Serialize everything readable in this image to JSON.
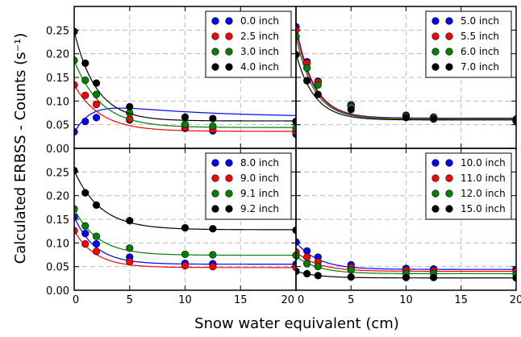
{
  "chart_data": {
    "type": "line",
    "ylabel": "Calculated ERBSS - Counts (s⁻¹)",
    "xlabel": "Snow water equivalent (cm)",
    "xlim": [
      0,
      20
    ],
    "ylim": [
      0,
      0.3
    ],
    "xticks": [
      0,
      5,
      10,
      15,
      20
    ],
    "xtick_labels_bottom_left": [
      "0",
      "5",
      "10",
      "15",
      "20"
    ],
    "xtick_labels_bottom_right": [
      "0",
      "5",
      "10",
      "15",
      "20"
    ],
    "yticks": [
      0.0,
      0.05,
      0.1,
      0.15,
      0.2,
      0.25
    ],
    "ytick_labels": [
      "0.00",
      "0.05",
      "0.10",
      "0.15",
      "0.20",
      "0.25"
    ],
    "grid": true,
    "legend_placement": "top-right",
    "x_points": [
      0,
      1,
      2,
      5,
      10,
      12.5,
      20
    ],
    "panels": [
      {
        "series": [
          {
            "name": "0.0 inch",
            "color": "#0000ff",
            "values": [
              0.035,
              0.057,
              0.065,
              0.06,
              0.042,
              0.037,
              0.03
            ],
            "curve": {
              "a": 0.066,
              "b": 0.038,
              "k": 0.12,
              "c": 0.072,
              "d": 0.7
            }
          },
          {
            "name": "2.5 inch",
            "color": "#ff0000",
            "values": [
              0.134,
              0.112,
              0.093,
              0.062,
              0.045,
              0.04,
              0.035
            ],
            "curve": {
              "a": 0.036,
              "b": 0.098,
              "k": 0.42
            }
          },
          {
            "name": "3.0 inch",
            "color": "#008000",
            "values": [
              0.186,
              0.144,
              0.114,
              0.075,
              0.051,
              0.047,
              0.042
            ],
            "curve": {
              "a": 0.044,
              "b": 0.142,
              "k": 0.42
            }
          },
          {
            "name": "4.0 inch",
            "color": "#000000",
            "values": [
              0.247,
              0.18,
              0.138,
              0.088,
              0.066,
              0.063,
              0.057
            ],
            "curve": {
              "a": 0.058,
              "b": 0.189,
              "k": 0.5
            }
          }
        ]
      },
      {
        "series": [
          {
            "name": "5.0 inch",
            "color": "#0000ff",
            "values": [
              0.257,
              0.183,
              0.142,
              0.092,
              0.07,
              0.066,
              0.062
            ],
            "curve": {
              "a": 0.064,
              "b": 0.195,
              "k": 0.62
            }
          },
          {
            "name": "5.5 inch",
            "color": "#ff0000",
            "values": [
              0.25,
              0.18,
              0.14,
              0.09,
              0.069,
              0.065,
              0.061
            ],
            "curve": {
              "a": 0.063,
              "b": 0.188,
              "k": 0.62
            }
          },
          {
            "name": "6.0 inch",
            "color": "#008000",
            "values": [
              0.237,
              0.17,
              0.134,
              0.088,
              0.068,
              0.065,
              0.06
            ],
            "curve": {
              "a": 0.062,
              "b": 0.175,
              "k": 0.62
            }
          },
          {
            "name": "7.0 inch",
            "color": "#000000",
            "values": [
              0.198,
              0.143,
              0.114,
              0.082,
              0.065,
              0.062,
              0.058
            ],
            "curve": {
              "a": 0.06,
              "b": 0.14,
              "k": 0.6
            }
          }
        ]
      },
      {
        "series": [
          {
            "name": "8.0 inch",
            "color": "#0000ff",
            "values": [
              0.155,
              0.12,
              0.098,
              0.07,
              0.057,
              0.056,
              0.055
            ],
            "curve": {
              "a": 0.055,
              "b": 0.1,
              "k": 0.52
            }
          },
          {
            "name": "9.0 inch",
            "color": "#ff0000",
            "values": [
              0.126,
              0.098,
              0.082,
              0.06,
              0.052,
              0.05,
              0.048
            ],
            "curve": {
              "a": 0.048,
              "b": 0.078,
              "k": 0.52
            }
          },
          {
            "name": "9.1 inch",
            "color": "#008000",
            "values": [
              0.172,
              0.136,
              0.114,
              0.089,
              0.076,
              0.075,
              0.074
            ],
            "curve": {
              "a": 0.074,
              "b": 0.098,
              "k": 0.47
            }
          },
          {
            "name": "9.2 inch",
            "color": "#000000",
            "values": [
              0.253,
              0.206,
              0.18,
              0.147,
              0.132,
              0.13,
              0.127
            ],
            "curve": {
              "a": 0.128,
              "b": 0.125,
              "k": 0.42
            }
          }
        ]
      },
      {
        "series": [
          {
            "name": "10.0 inch",
            "color": "#0000ff",
            "values": [
              0.102,
              0.083,
              0.07,
              0.054,
              0.046,
              0.045,
              0.044
            ],
            "curve": {
              "a": 0.044,
              "b": 0.058,
              "k": 0.5
            }
          },
          {
            "name": "11.0 inch",
            "color": "#ff0000",
            "values": [
              0.081,
              0.07,
              0.06,
              0.048,
              0.042,
              0.041,
              0.04
            ],
            "curve": {
              "a": 0.04,
              "b": 0.041,
              "k": 0.5
            }
          },
          {
            "name": "12.0 inch",
            "color": "#008000",
            "values": [
              0.072,
              0.056,
              0.05,
              0.043,
              0.036,
              0.036,
              0.034
            ],
            "curve": {
              "a": 0.035,
              "b": 0.037,
              "k": 0.5
            }
          },
          {
            "name": "15.0 inch",
            "color": "#000000",
            "values": [
              0.04,
              0.035,
              0.031,
              0.028,
              0.027,
              0.027,
              0.026
            ],
            "curve": {
              "a": 0.026,
              "b": 0.014,
              "k": 0.5
            }
          }
        ]
      }
    ]
  }
}
